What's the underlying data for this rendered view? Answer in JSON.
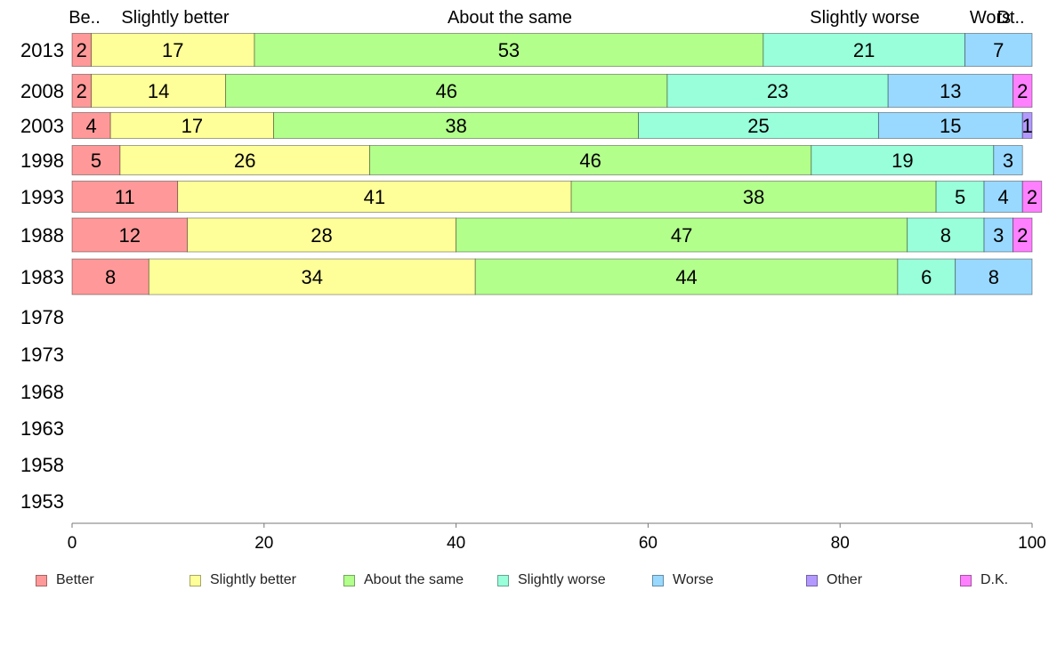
{
  "chart_data": {
    "type": "bar",
    "orientation": "horizontal",
    "stacked": true,
    "title": "",
    "xlabel": "",
    "ylabel": "",
    "xlim": [
      0,
      100
    ],
    "x_ticks": [
      "0",
      "20",
      "40",
      "60",
      "80",
      "100"
    ],
    "categories": [
      "2013",
      "2008",
      "2003",
      "1998",
      "1993",
      "1988",
      "1983",
      "1978",
      "1973",
      "1968",
      "1963",
      "1958",
      "1953"
    ],
    "top_labels": [
      "Be..",
      "Slightly better",
      "About the same",
      "Slightly worse",
      "Wors",
      "Dt.."
    ],
    "series": [
      {
        "name": "Better",
        "color": "#ff9999",
        "values": [
          2,
          2,
          4,
          5,
          11,
          12,
          8,
          null,
          null,
          null,
          null,
          null,
          null
        ]
      },
      {
        "name": "Slightly better",
        "color": "#ffff99",
        "values": [
          17,
          14,
          17,
          26,
          41,
          28,
          34,
          null,
          null,
          null,
          null,
          null,
          null
        ]
      },
      {
        "name": "About the same",
        "color": "#b3ff8c",
        "values": [
          53,
          46,
          38,
          46,
          38,
          47,
          44,
          null,
          null,
          null,
          null,
          null,
          null
        ]
      },
      {
        "name": "Slightly worse",
        "color": "#99ffdb",
        "values": [
          21,
          23,
          25,
          19,
          5,
          8,
          6,
          null,
          null,
          null,
          null,
          null,
          null
        ]
      },
      {
        "name": "Worse",
        "color": "#99d9ff",
        "values": [
          7,
          13,
          15,
          3,
          4,
          3,
          8,
          null,
          null,
          null,
          null,
          null,
          null
        ]
      },
      {
        "name": "Other",
        "color": "#b399ff",
        "values": [
          0,
          0,
          1,
          0,
          0,
          0,
          0,
          null,
          null,
          null,
          null,
          null,
          null
        ]
      },
      {
        "name": "D.K.",
        "color": "#ff80ff",
        "values": [
          0,
          2,
          0,
          0,
          2,
          2,
          0,
          null,
          null,
          null,
          null,
          null,
          null
        ]
      }
    ],
    "data_labels": [
      [
        "2",
        "17",
        "53",
        "21",
        "7",
        "",
        ""
      ],
      [
        "2",
        "14",
        "46",
        "23",
        "13",
        "",
        "2"
      ],
      [
        "4",
        "17",
        "38",
        "25",
        "15",
        "1",
        ""
      ],
      [
        "5",
        "26",
        "46",
        "19",
        "3",
        "",
        ""
      ],
      [
        "11",
        "41",
        "38",
        "5",
        "4",
        "",
        "2"
      ],
      [
        "12",
        "28",
        "47",
        "8",
        "3",
        "",
        "2"
      ],
      [
        "8",
        "34",
        "44",
        "6",
        "8",
        "",
        ""
      ],
      [],
      [],
      [],
      [],
      [],
      []
    ],
    "legend_position": "bottom",
    "grid": false
  }
}
